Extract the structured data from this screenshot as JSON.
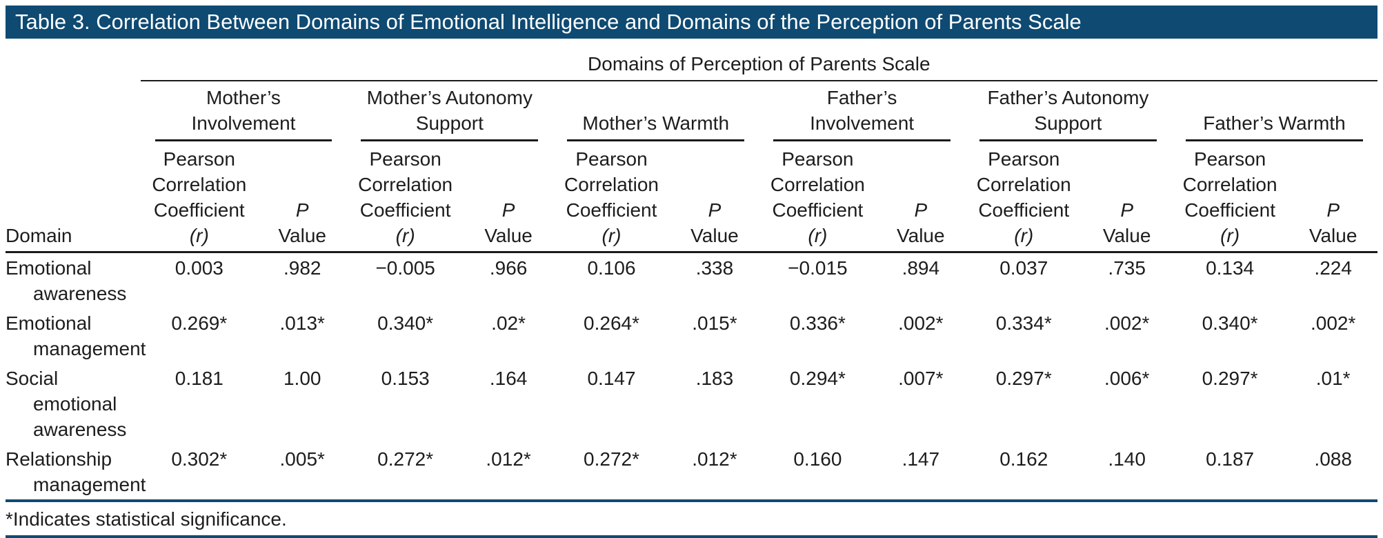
{
  "title": "Table 3. Correlation Between Domains of Emotional Intelligence and Domains of the Perception of Parents Scale",
  "colors": {
    "title_bar": "#0e4a72",
    "rule_blue": "#0e4a72",
    "rule_black": "#1a1a1a"
  },
  "table": {
    "spanner": "Domains of Perception of Parents Scale",
    "domain_header": "Domain",
    "groups": [
      {
        "label": "Mother’s Involvement"
      },
      {
        "label": "Mother’s Autonomy Support"
      },
      {
        "label": "Mother’s Warmth"
      },
      {
        "label": "Father’s Involvement"
      },
      {
        "label": "Father’s Autonomy Support"
      },
      {
        "label": "Father’s Warmth"
      }
    ],
    "subheaders": {
      "r_label": "Pearson Correlation Coefficient",
      "r_symbol": "(r)",
      "p_label": "P",
      "p_value_label": "Value"
    },
    "rows": [
      {
        "label_lines": [
          "Emotional",
          "awareness"
        ],
        "values": [
          "0.003",
          ".982",
          "−0.005",
          ".966",
          "0.106",
          ".338",
          "−0.015",
          ".894",
          "0.037",
          ".735",
          "0.134",
          ".224"
        ]
      },
      {
        "label_lines": [
          "Emotional",
          "management"
        ],
        "values": [
          "0.269*",
          ".013*",
          "0.340*",
          ".02*",
          "0.264*",
          ".015*",
          "0.336*",
          ".002*",
          "0.334*",
          ".002*",
          "0.340*",
          ".002*"
        ]
      },
      {
        "label_lines": [
          "Social",
          "emotional",
          "awareness"
        ],
        "values": [
          "0.181",
          "1.00",
          "0.153",
          ".164",
          "0.147",
          ".183",
          "0.294*",
          ".007*",
          "0.297*",
          ".006*",
          "0.297*",
          ".01*"
        ]
      },
      {
        "label_lines": [
          "Relationship",
          "management"
        ],
        "values": [
          "0.302*",
          ".005*",
          "0.272*",
          ".012*",
          "0.272*",
          ".012*",
          "0.160",
          ".147",
          "0.162",
          ".140",
          "0.187",
          ".088"
        ]
      }
    ],
    "footnote": "*Indicates statistical significance."
  }
}
